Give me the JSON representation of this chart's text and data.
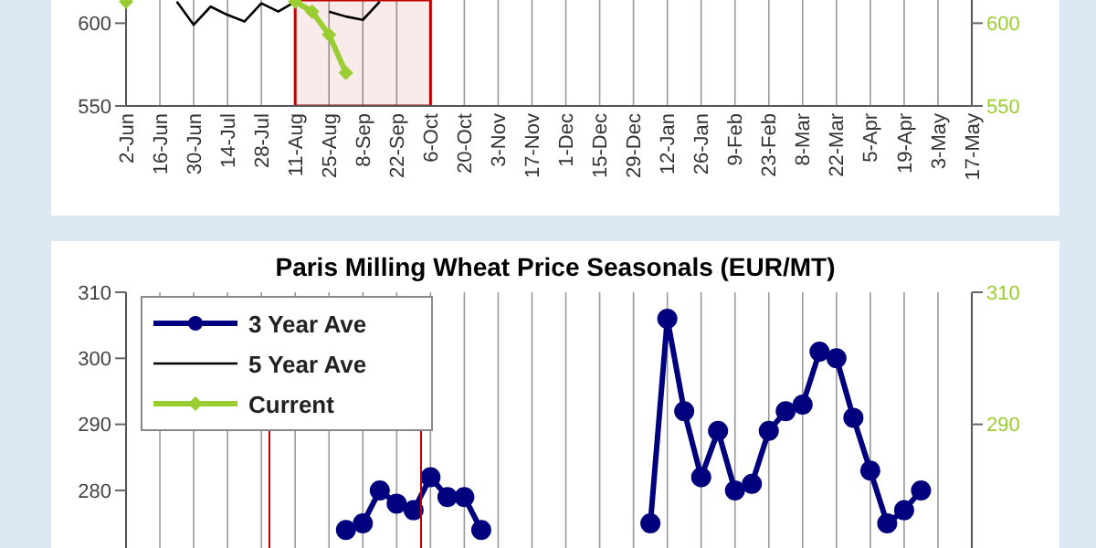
{
  "chart_data": [
    {
      "type": "line",
      "categories": [
        "2-Jun",
        null,
        "16-Jun",
        null,
        "30-Jun",
        null,
        "14-Jul",
        null,
        "28-Jul",
        null,
        "11-Aug",
        null,
        "25-Aug",
        null,
        "8-Sep",
        null,
        "22-Sep",
        null,
        "6-Oct",
        null,
        "20-Oct",
        null,
        "3-Nov",
        null,
        "17-Nov",
        null,
        "1-Dec",
        null,
        "15-Dec",
        null,
        "29-Dec",
        null,
        "12-Jan",
        null,
        "26-Jan",
        null,
        "9-Feb",
        null,
        "23-Feb",
        null,
        "8-Mar",
        null,
        "22-Mar",
        null,
        "5-Apr",
        null,
        "19-Apr",
        null,
        "3-May",
        null,
        "17-May"
      ],
      "ylim": [
        550,
        614
      ],
      "yticks": [
        550,
        600
      ],
      "y2lim": [
        550,
        614
      ],
      "y2ticks": [
        550,
        600
      ],
      "grid": "x",
      "bands": [
        {
          "axis": "x",
          "from": "11-Aug",
          "to": "6-Oct",
          "color": "#c00000"
        }
      ],
      "series": [
        {
          "color": "#000000",
          "marker": "none",
          "values": [
            null,
            null,
            null,
            613,
            599,
            610,
            605,
            601,
            612,
            607,
            613,
            null,
            607,
            604,
            602,
            613,
            null,
            null,
            null,
            null,
            null,
            null,
            null,
            null,
            null,
            null,
            null,
            null,
            null,
            null,
            null,
            null,
            null,
            null,
            null,
            null,
            null,
            null,
            null,
            null,
            null,
            null,
            null,
            null,
            null,
            null,
            null,
            null,
            null,
            null,
            null
          ]
        },
        {
          "color": "#9acd32",
          "marker": "diamond",
          "axis": "y2",
          "values": [
            613,
            null,
            null,
            null,
            null,
            null,
            null,
            null,
            null,
            null,
            613,
            607,
            593,
            570,
            null,
            null,
            null,
            null,
            null,
            null,
            null,
            null,
            null,
            null,
            null,
            null,
            null,
            null,
            null,
            null,
            null,
            null,
            null,
            null,
            null,
            null,
            null,
            null,
            null,
            null,
            null,
            null,
            null,
            null,
            null,
            null,
            null,
            null,
            null,
            null,
            null
          ]
        }
      ]
    },
    {
      "type": "line",
      "title": "Paris Milling Wheat Price Seasonals (EUR/MT)",
      "categories": [
        null,
        null,
        null,
        null,
        null,
        null,
        null,
        null,
        null,
        null,
        null,
        null,
        null,
        null,
        null,
        null,
        null,
        null,
        null,
        null,
        null,
        null,
        null,
        null,
        null,
        null,
        null,
        null,
        null,
        null,
        null,
        null,
        null,
        null,
        null,
        null,
        null,
        null,
        null,
        null,
        null,
        null,
        null,
        null,
        null,
        null,
        null,
        null,
        null,
        null,
        null
      ],
      "ylim": [
        271,
        310
      ],
      "yticks": [
        280,
        290,
        300,
        310
      ],
      "y2lim": [
        271,
        310
      ],
      "y2ticks": [
        290,
        310
      ],
      "grid": "x",
      "legend": "top left",
      "tick_labels": "y",
      "series": [
        {
          "name": "3 Year Ave",
          "color": "#00007f",
          "marker": "circle",
          "values": [
            null,
            null,
            null,
            null,
            null,
            null,
            null,
            null,
            null,
            null,
            null,
            null,
            null,
            274,
            275,
            280,
            278,
            277,
            282,
            279,
            279,
            274,
            null,
            null,
            null,
            null,
            null,
            null,
            null,
            null,
            null,
            275,
            306,
            292,
            282,
            289,
            280,
            281,
            289,
            292,
            293,
            301,
            300,
            291,
            283,
            275,
            277,
            280,
            null,
            null,
            null
          ]
        },
        {
          "name": "5 Year Ave",
          "color": "#000000",
          "marker": "none",
          "values": [
            null,
            null,
            null,
            null,
            null,
            null,
            null,
            null,
            null,
            null,
            null,
            null,
            null,
            null,
            null,
            null,
            null,
            null,
            null,
            null,
            null,
            null,
            null,
            null,
            null,
            null,
            null,
            null,
            null,
            null,
            null,
            null,
            null,
            null,
            null,
            null,
            null,
            null,
            null,
            null,
            null,
            null,
            null,
            null,
            null,
            null,
            null,
            null,
            null,
            null,
            null
          ]
        },
        {
          "name": "Current",
          "color": "#9acd32",
          "marker": "diamond",
          "axis": "y2",
          "values": [
            null,
            null,
            null,
            null,
            null,
            null,
            null,
            null,
            null,
            null,
            null,
            null,
            null,
            null,
            null,
            null,
            null,
            null,
            null,
            null,
            null,
            null,
            null,
            null,
            null,
            null,
            null,
            null,
            null,
            null,
            null,
            null,
            null,
            null,
            null,
            null,
            null,
            null,
            null,
            null,
            null,
            null,
            null,
            null,
            null,
            null,
            null,
            null,
            null,
            null,
            null
          ]
        }
      ]
    }
  ]
}
